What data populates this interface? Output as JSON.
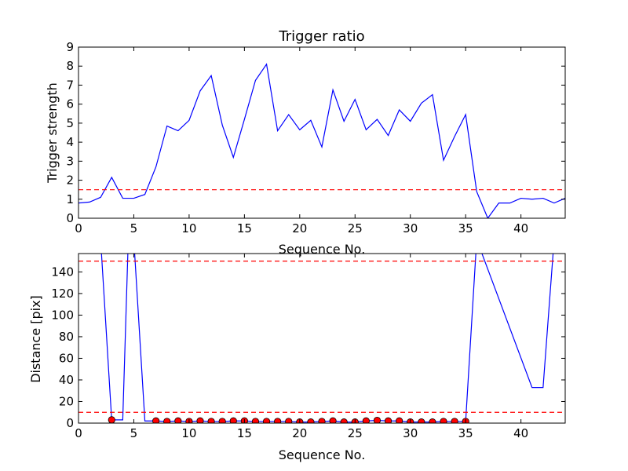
{
  "chart_data": [
    {
      "type": "line",
      "title": "Trigger ratio",
      "xlabel": "Sequence No.",
      "ylabel": "Trigger strength",
      "xlim": [
        0,
        44
      ],
      "ylim": [
        0,
        9
      ],
      "xticks": [
        "0",
        "5",
        "10",
        "15",
        "20",
        "25",
        "30",
        "35",
        "40"
      ],
      "yticks": [
        "0",
        "1",
        "2",
        "3",
        "4",
        "5",
        "6",
        "7",
        "8",
        "9"
      ],
      "grid": false,
      "series": [
        {
          "color": "#0000ff",
          "style": "line",
          "x": [
            0,
            1,
            2,
            3,
            4,
            5,
            6,
            7,
            8,
            9,
            10,
            11,
            12,
            13,
            14,
            15,
            16,
            17,
            18,
            19,
            20,
            21,
            22,
            23,
            24,
            25,
            26,
            27,
            28,
            29,
            30,
            31,
            32,
            33,
            34,
            35,
            36,
            37,
            38,
            39,
            40,
            41,
            42,
            43,
            44
          ],
          "y": [
            0.8,
            0.85,
            1.1,
            2.15,
            1.05,
            1.05,
            1.25,
            2.7,
            4.85,
            4.6,
            5.15,
            6.7,
            7.5,
            4.9,
            3.2,
            5.2,
            7.25,
            8.1,
            4.6,
            5.45,
            4.65,
            5.15,
            3.75,
            6.75,
            5.1,
            6.25,
            4.65,
            5.2,
            4.35,
            5.7,
            5.1,
            6.05,
            6.5,
            3.05,
            4.3,
            5.45,
            1.4,
            0.0,
            0.8,
            0.8,
            1.05,
            1.0,
            1.05,
            0.8,
            1.05
          ]
        },
        {
          "color": "#ff0000",
          "style": "dashed-hline",
          "y": 1.5
        }
      ]
    },
    {
      "type": "line",
      "title": "",
      "xlabel": "Sequence No.",
      "ylabel": "Distance [pix]",
      "xlim": [
        0,
        44
      ],
      "ylim": [
        0,
        157
      ],
      "xticks": [
        "0",
        "5",
        "10",
        "15",
        "20",
        "25",
        "30",
        "35",
        "40"
      ],
      "yticks": [
        "0",
        "20",
        "40",
        "60",
        "80",
        "100",
        "120",
        "140"
      ],
      "grid": false,
      "series": [
        {
          "color": "#0000ff",
          "style": "line",
          "x": [
            2,
            3,
            4,
            4.5,
            5,
            6,
            7,
            8,
            9,
            10,
            11,
            12,
            13,
            14,
            15,
            16,
            17,
            18,
            19,
            20,
            21,
            22,
            23,
            24,
            25,
            26,
            27,
            28,
            29,
            30,
            31,
            32,
            33,
            34,
            35,
            36,
            41,
            42,
            43
          ],
          "y": [
            170,
            3,
            3,
            170,
            170,
            2,
            2,
            1.5,
            2,
            1.5,
            2,
            1.5,
            1.5,
            2,
            2,
            1.5,
            1.5,
            1.5,
            1.5,
            1,
            1,
            1.5,
            2,
            1,
            1,
            2,
            2.5,
            2,
            2,
            1,
            1,
            1,
            1.5,
            1.5,
            1.5,
            170,
            33,
            33,
            170
          ]
        },
        {
          "color": "#ff0000",
          "style": "markers",
          "x": [
            3,
            7,
            8,
            9,
            10,
            11,
            12,
            13,
            14,
            15,
            16,
            17,
            18,
            19,
            20,
            21,
            22,
            23,
            24,
            25,
            26,
            27,
            28,
            29,
            30,
            31,
            32,
            33,
            34,
            35
          ],
          "y": [
            3,
            2,
            1.5,
            2,
            1.5,
            2,
            1.5,
            1.5,
            2,
            2,
            1.5,
            1.5,
            1.5,
            1.5,
            1,
            1,
            1.5,
            2,
            1,
            1,
            2,
            2.5,
            2,
            2,
            1,
            1,
            1,
            1.5,
            1.5,
            1.5
          ]
        },
        {
          "color": "#ff0000",
          "style": "dashed-hline",
          "y": 150
        },
        {
          "color": "#ff0000",
          "style": "dashed-hline",
          "y": 10
        }
      ]
    }
  ]
}
